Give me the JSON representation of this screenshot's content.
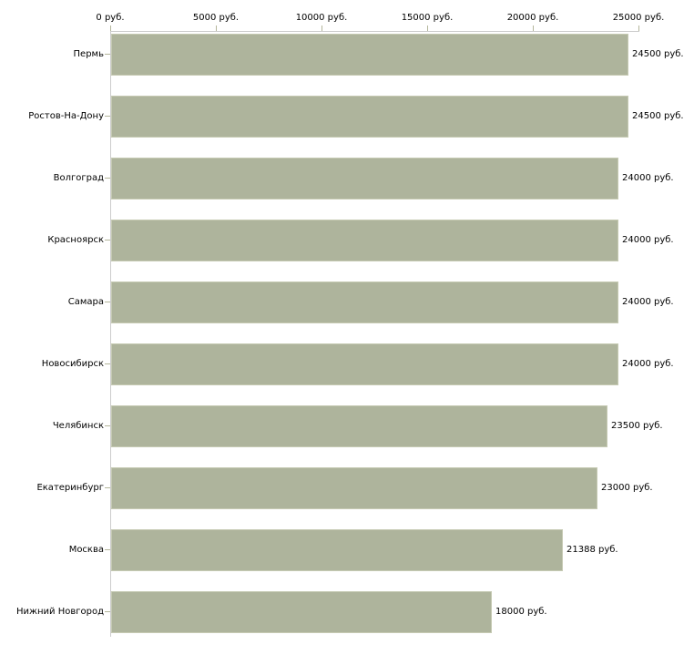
{
  "chart_data": {
    "type": "bar",
    "orientation": "horizontal",
    "title": "",
    "categories": [
      "Пермь",
      "Ростов-На-Дону",
      "Волгоград",
      "Красноярск",
      "Самара",
      "Новосибирск",
      "Челябинск",
      "Екатеринбург",
      "Москва",
      "Нижний Новгород"
    ],
    "values": [
      24500,
      24500,
      24000,
      24000,
      24000,
      24000,
      23500,
      23000,
      21388,
      18000
    ],
    "value_labels": [
      "24500 руб.",
      "24500 руб.",
      "24000 руб.",
      "24000 руб.",
      "24000 руб.",
      "24000 руб.",
      "23500 руб.",
      "23000 руб.",
      "21388 руб.",
      "18000 руб."
    ],
    "x_axis": {
      "position": "top",
      "tick_labels": [
        "0 руб.",
        "5000 руб.",
        "10000 руб.",
        "15000 руб.",
        "20000 руб.",
        "25000 руб."
      ],
      "tick_values": [
        0,
        5000,
        10000,
        15000,
        20000,
        25000
      ],
      "max": 25000
    },
    "xlim": [
      0,
      25000
    ],
    "unit": "руб.",
    "grid": "off",
    "legend": "none",
    "colors": {
      "bar_fill": "#aeb49c",
      "bar_border": "#c6cab3",
      "axis_line": "#cccccc",
      "tick_mark": "#b4b69b",
      "text": "#000000",
      "background": "#ffffff"
    }
  }
}
